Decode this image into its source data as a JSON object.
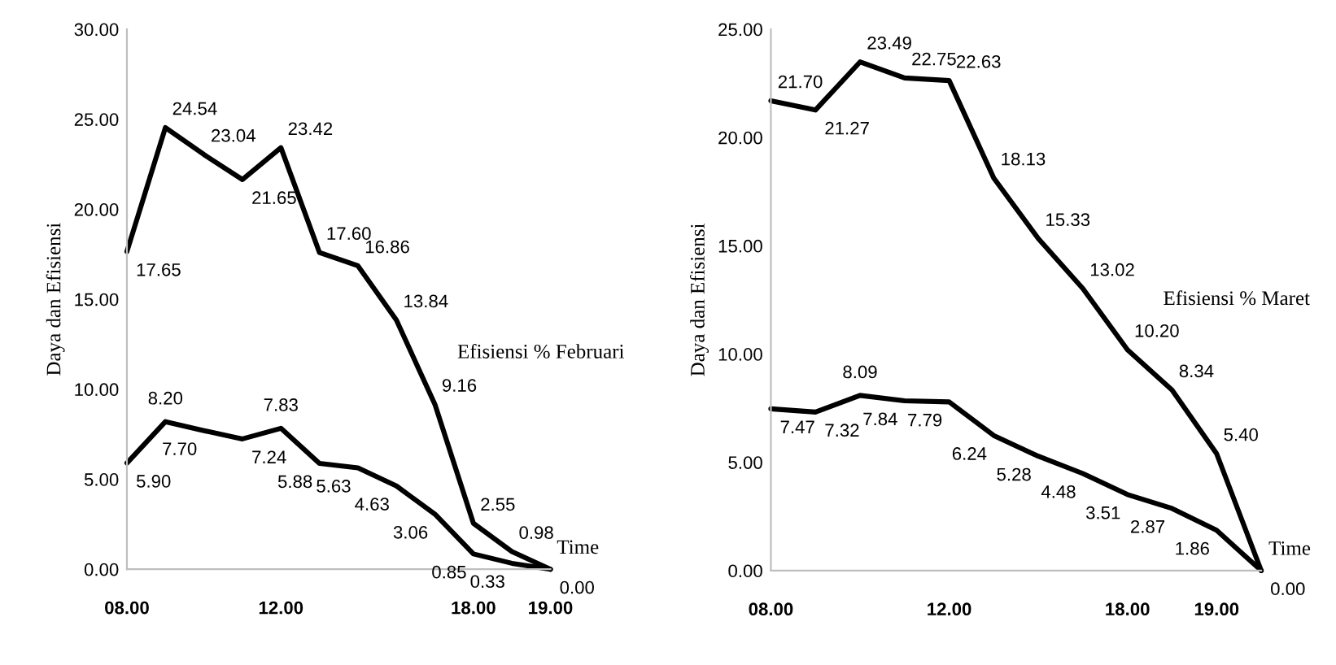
{
  "chart_data": [
    {
      "type": "line",
      "xlabel": "Time",
      "ylabel": "Daya dan Efisiensi",
      "categories": [
        "08.00",
        null,
        null,
        null,
        "12.00",
        null,
        null,
        null,
        null,
        "18.00",
        null,
        "19.00"
      ],
      "series": [
        {
          "name": "Efisiensi % Februari",
          "color": "#000000",
          "values": [
            17.65,
            24.54,
            23.04,
            21.65,
            23.42,
            17.6,
            16.86,
            13.84,
            9.16,
            2.55,
            0.98,
            0.0
          ],
          "value_labels": [
            "17.65",
            "24.54",
            "23.04",
            "21.65",
            "23.42",
            "17.60",
            "16.86",
            "13.84",
            "9.16",
            "2.55",
            "0.98",
            "0.00"
          ]
        },
        {
          "color": "#000000",
          "values": [
            5.9,
            8.2,
            7.7,
            7.24,
            7.83,
            5.88,
            5.63,
            4.63,
            3.06,
            0.85,
            0.33,
            0.0
          ],
          "value_labels": [
            "5.90",
            "8.20",
            "7.70",
            "7.24",
            "7.83",
            "5.88",
            "5.63",
            "4.63",
            "3.06",
            "0.85",
            "0.33",
            null
          ]
        }
      ],
      "ylim": [
        0,
        30
      ],
      "yticks": [
        {
          "value": 0,
          "label": "0.00"
        },
        {
          "value": 5,
          "label": "5.00"
        },
        {
          "value": 10,
          "label": "10.00"
        },
        {
          "value": 15,
          "label": "15.00"
        },
        {
          "value": 20,
          "label": "20.00"
        },
        {
          "value": 25,
          "label": "25.00"
        },
        {
          "value": 30,
          "label": "30.00"
        }
      ],
      "grid": false,
      "marker": "none",
      "line_style": "solid"
    },
    {
      "type": "line",
      "xlabel": "Time",
      "ylabel": "Daya dan Efisiensi",
      "categories": [
        "08.00",
        null,
        null,
        null,
        "12.00",
        null,
        null,
        null,
        "18.00",
        null,
        "19.00",
        null
      ],
      "series": [
        {
          "name": "Efisiensi % Maret",
          "color": "#000000",
          "values": [
            21.7,
            21.27,
            23.49,
            22.75,
            22.63,
            18.13,
            15.33,
            13.02,
            10.2,
            8.34,
            5.4,
            0.0
          ],
          "value_labels": [
            "21.70",
            "21.27",
            "23.49",
            "22.75",
            "22.63",
            "18.13",
            "15.33",
            "13.02",
            "10.20",
            "8.34",
            "5.40",
            "0.00"
          ]
        },
        {
          "color": "#000000",
          "values": [
            7.47,
            7.32,
            8.09,
            7.84,
            7.79,
            6.24,
            5.28,
            4.48,
            3.51,
            2.87,
            1.86,
            0.0
          ],
          "value_labels": [
            "7.47",
            "7.32",
            "8.09",
            "7.84",
            "7.79",
            "6.24",
            "5.28",
            "4.48",
            "3.51",
            "2.87",
            "1.86",
            null
          ]
        }
      ],
      "ylim": [
        0,
        25
      ],
      "yticks": [
        {
          "value": 0,
          "label": "0.00"
        },
        {
          "value": 5,
          "label": "5.00"
        },
        {
          "value": 10,
          "label": "10.00"
        },
        {
          "value": 15,
          "label": "15.00"
        },
        {
          "value": 20,
          "label": "20.00"
        },
        {
          "value": 25,
          "label": "25.00"
        }
      ],
      "grid": false,
      "marker": "none",
      "line_style": "solid"
    }
  ]
}
